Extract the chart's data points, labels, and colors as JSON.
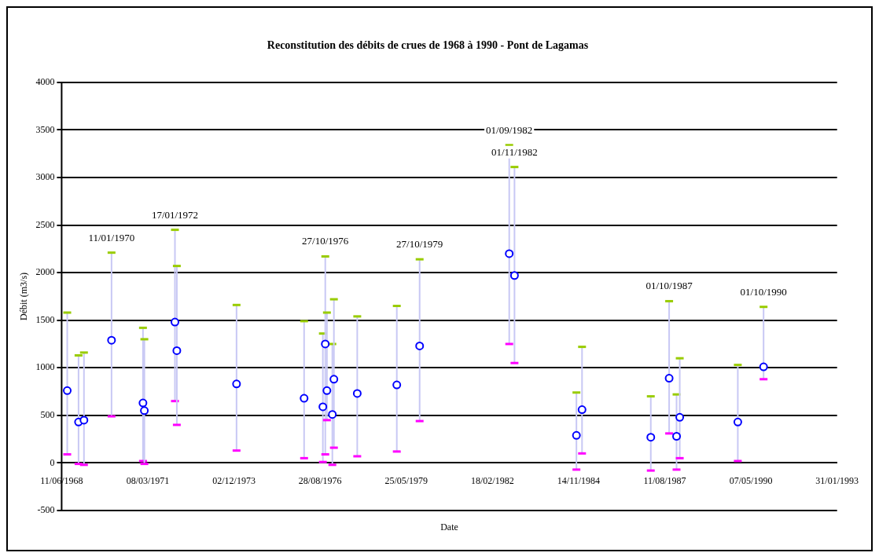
{
  "chart_data": {
    "type": "scatter",
    "title": "Reconstitution des débits de crues de 1968 à 1990 - Pont de Lagamas",
    "xlabel": "Date",
    "ylabel": "Débit (m3/s)",
    "x": [
      "1968-08-15",
      "1968-12-24",
      "1969-02-25",
      "1970-01-11",
      "1971-01-11",
      "1971-01-27",
      "1972-01-17",
      "1972-02-08",
      "1974-01-01",
      "1976-02-24",
      "1976-09-29",
      "1976-10-27",
      "1976-11-15",
      "1977-01-17",
      "1977-02-04",
      "1977-11-02",
      "1979-02-04",
      "1979-10-27",
      "1982-09-01",
      "1982-11-01",
      "1984-10-20",
      "1984-12-24",
      "1987-03-02",
      "1987-10-01",
      "1987-12-26",
      "1988-02-01",
      "1989-12-06",
      "1990-10-01"
    ],
    "series": [
      {
        "color": "#0000ff",
        "marker": "circle",
        "values": [
          760,
          430,
          450,
          1290,
          630,
          550,
          1480,
          1180,
          830,
          680,
          590,
          1250,
          760,
          510,
          880,
          730,
          820,
          1230,
          2200,
          1970,
          290,
          560,
          270,
          890,
          280,
          480,
          430,
          1010
        ],
        "errors": [
          [
            90,
            1580
          ],
          [
            -10,
            1130
          ],
          [
            -20,
            1160
          ],
          [
            490,
            2210
          ],
          [
            20,
            1420
          ],
          [
            -10,
            1300
          ],
          [
            650,
            2450
          ],
          [
            400,
            2070
          ],
          [
            130,
            1660
          ],
          [
            50,
            1490
          ],
          [
            10,
            1360
          ],
          [
            90,
            2170
          ],
          [
            450,
            1580
          ],
          [
            -20,
            1250
          ],
          [
            160,
            1720
          ],
          [
            70,
            1540
          ],
          [
            120,
            1650
          ],
          [
            440,
            2140
          ],
          [
            1250,
            3340
          ],
          [
            1050,
            3110
          ],
          [
            -70,
            740
          ],
          [
            100,
            1220
          ],
          [
            -80,
            700
          ],
          [
            310,
            1700
          ],
          [
            -70,
            720
          ],
          [
            50,
            1100
          ],
          [
            20,
            1030
          ],
          [
            880,
            1640
          ]
        ]
      }
    ],
    "xlim": [
      "1968-06-11",
      "1993-01-31"
    ],
    "xticks": [
      {
        "value": "1968-06-11",
        "label": "11/06/1968"
      },
      {
        "value": "1971-03-08",
        "label": "08/03/1971"
      },
      {
        "value": "1973-12-02",
        "label": "02/12/1973"
      },
      {
        "value": "1976-08-28",
        "label": "28/08/1976"
      },
      {
        "value": "1979-05-25",
        "label": "25/05/1979"
      },
      {
        "value": "1982-02-18",
        "label": "18/02/1982"
      },
      {
        "value": "1984-11-14",
        "label": "14/11/1984"
      },
      {
        "value": "1987-08-11",
        "label": "11/08/1987"
      },
      {
        "value": "1990-05-07",
        "label": "07/05/1990"
      },
      {
        "value": "1993-01-31",
        "label": "31/01/1993"
      }
    ],
    "ylim": [
      -500,
      4000
    ],
    "yticks": [
      -500,
      0,
      500,
      1000,
      1500,
      2000,
      2500,
      3000,
      3500,
      4000
    ],
    "grid": "y",
    "legend": false,
    "annotations": [
      {
        "text": "11/01/1970",
        "x": "1970-01-11",
        "y": 2210
      },
      {
        "text": "17/01/1972",
        "x": "1972-01-17",
        "y": 2450
      },
      {
        "text": "27/10/1976",
        "x": "1976-10-27",
        "y": 2170
      },
      {
        "text": "27/10/1979",
        "x": "1979-10-27",
        "y": 2140
      },
      {
        "text": "01/09/1982",
        "x": "1982-09-01",
        "y": 3340
      },
      {
        "text": "01/11/1982",
        "x": "1982-11-01",
        "y": 3110
      },
      {
        "text": "01/10/1987",
        "x": "1987-10-01",
        "y": 1700
      },
      {
        "text": "01/10/1990",
        "x": "1990-10-01",
        "y": 1640
      }
    ]
  }
}
